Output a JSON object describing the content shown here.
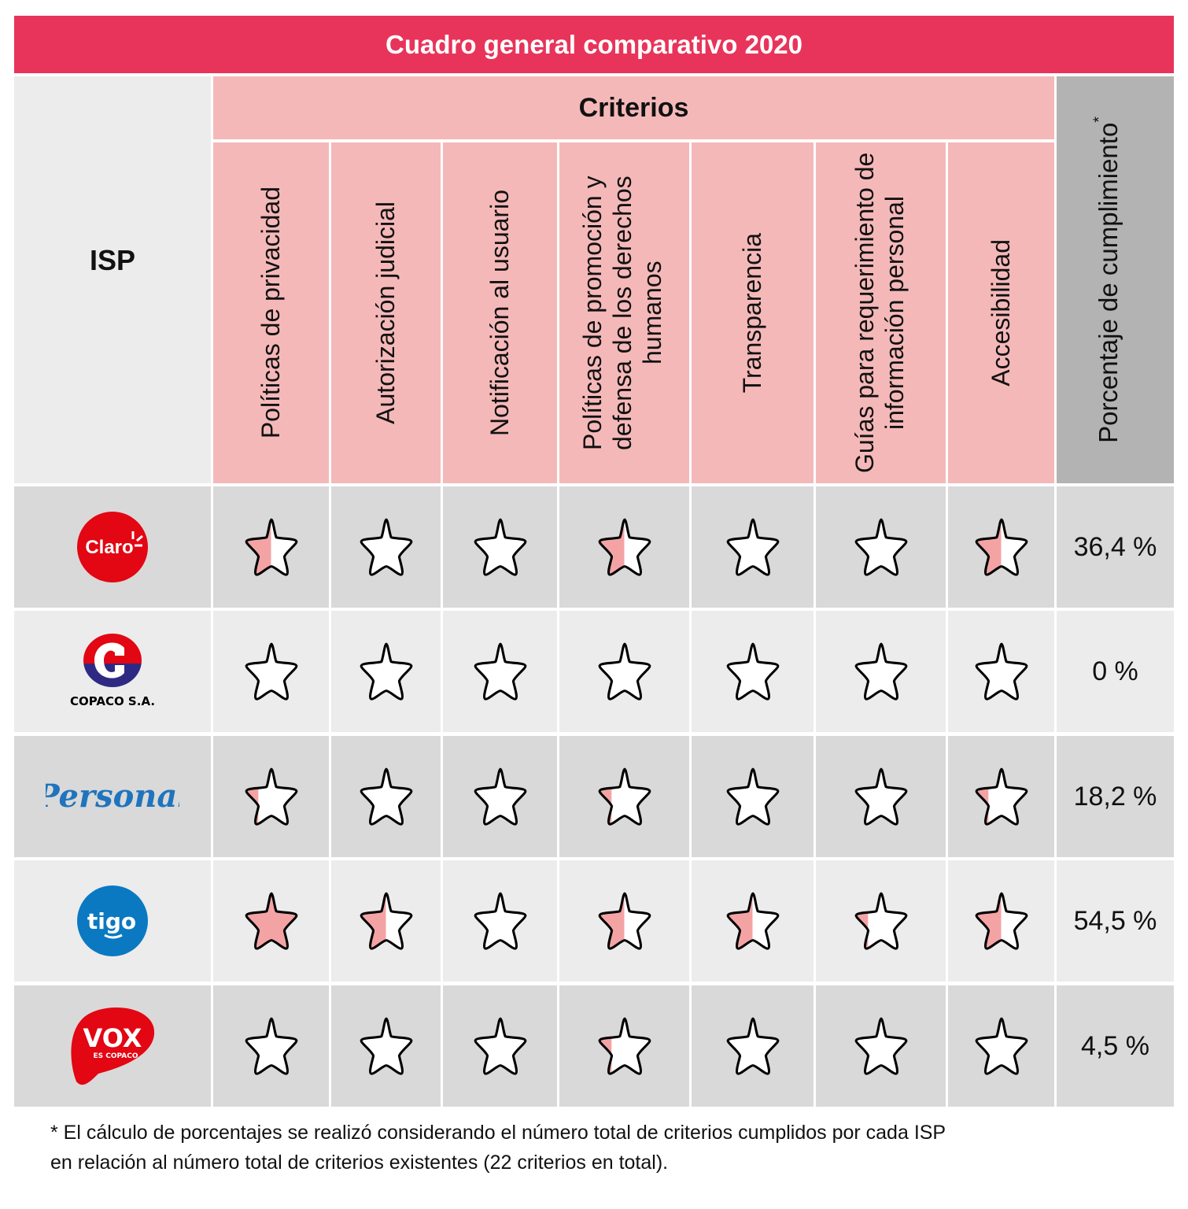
{
  "title": "Cuadro general comparativo 2020",
  "headers": {
    "isp": "ISP",
    "criterios": "Criterios",
    "percentage": "Porcentaje de cumplimiento",
    "percentage_mark": "*"
  },
  "colors": {
    "title_bg": "#e8345a",
    "header_pink": "#f5b8b9",
    "header_gray": "#b3b3b3",
    "row_dark": "#d9d9d9",
    "row_light": "#ececec",
    "star_fill": "#f4a3a5"
  },
  "chart_data": {
    "type": "table",
    "title": "Cuadro general comparativo 2020",
    "criteria": [
      "Políticas de privacidad",
      "Autorización judicial",
      "Notificación al usuario",
      "Políticas de promoción y defensa de los derechos humanos",
      "Transparencia",
      "Guías para requerimiento de información personal",
      "Accesibilidad"
    ],
    "rows": [
      {
        "isp": "Claro",
        "logo_text": "Claro",
        "star_fill": [
          0.5,
          0,
          0,
          0.5,
          0,
          0,
          0.5
        ],
        "percentage": "36,4 %"
      },
      {
        "isp": "COPACO S.A.",
        "logo_text": "COPACO S.A.",
        "star_fill": [
          0,
          0,
          0,
          0,
          0,
          0,
          0
        ],
        "percentage": "0 %"
      },
      {
        "isp": "Personal",
        "logo_text": "Personal",
        "star_fill": [
          0.25,
          0,
          0,
          0.25,
          0,
          0,
          0.25
        ],
        "percentage": "18,2 %"
      },
      {
        "isp": "Tigo",
        "logo_text": "tigo",
        "star_fill": [
          1,
          0.5,
          0,
          0.5,
          0.5,
          0.25,
          0.5
        ],
        "percentage": "54,5 %"
      },
      {
        "isp": "VOX",
        "logo_text": "VOX",
        "logo_subtext": "ES COPACO",
        "star_fill": [
          0,
          0,
          0,
          0.25,
          0,
          0,
          0
        ],
        "percentage": "4,5 %"
      }
    ]
  },
  "footnote": "* El cálculo de porcentajes se realizó considerando el número total de criterios cumplidos por cada ISP en relación al número total de criterios existentes (22 criterios en total)."
}
